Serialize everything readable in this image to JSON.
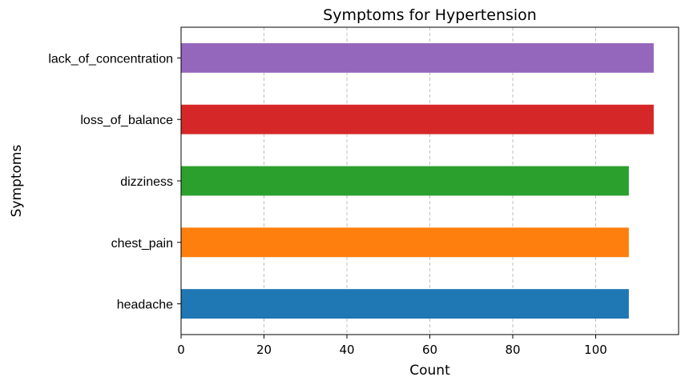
{
  "chart_data": {
    "type": "bar",
    "orientation": "horizontal",
    "title": "Symptoms for Hypertension",
    "xlabel": "Count",
    "ylabel": "Symptoms",
    "categories": [
      "headache",
      "chest_pain",
      "dizziness",
      "loss_of_balance",
      "lack_of_concentration"
    ],
    "values": [
      108,
      108,
      108,
      114,
      114
    ],
    "colors": [
      "#1f77b4",
      "#ff7f0e",
      "#2ca02c",
      "#d62728",
      "#9467bd"
    ],
    "xlim": [
      0,
      120
    ],
    "xticks": [
      "0",
      "20",
      "40",
      "60",
      "80",
      "100"
    ],
    "grid": "x-dashed"
  }
}
